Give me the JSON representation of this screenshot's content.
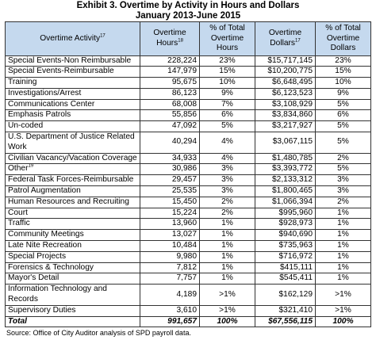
{
  "title": {
    "line1": "Exhibit 3. Overtime by Activity in Hours and Dollars",
    "line2": "January 2013-June 2015"
  },
  "headers": {
    "activity": "Overtime Activity",
    "activity_sup": "17",
    "hours": "Overtime Hours",
    "hours_sup": "18",
    "pct_hours": "% of Total Overtime Hours",
    "dollars": "Overtime Dollars",
    "dollars_sup": "17",
    "pct_dollars": "% of Total Overtime Dollars"
  },
  "rows": [
    {
      "activity": "Special Events-Non Reimbursable",
      "sup": "",
      "hours": "228,224",
      "pct_hours": "23%",
      "dollars": "$15,717,145",
      "pct_dollars": "23%"
    },
    {
      "activity": "Special Events-Reimbursable",
      "sup": "",
      "hours": "147,979",
      "pct_hours": "15%",
      "dollars": "$10,200,775",
      "pct_dollars": "15%"
    },
    {
      "activity": "Training",
      "sup": "",
      "hours": "95,675",
      "pct_hours": "10%",
      "dollars": "$6,648,495",
      "pct_dollars": "10%"
    },
    {
      "activity": "Investigations/Arrest",
      "sup": "",
      "hours": "86,123",
      "pct_hours": "9%",
      "dollars": "$6,123,523",
      "pct_dollars": "9%"
    },
    {
      "activity": "Communications Center",
      "sup": "",
      "hours": "68,008",
      "pct_hours": "7%",
      "dollars": "$3,108,929",
      "pct_dollars": "5%"
    },
    {
      "activity": "Emphasis Patrols",
      "sup": "",
      "hours": "55,856",
      "pct_hours": "6%",
      "dollars": "$3,834,860",
      "pct_dollars": "6%"
    },
    {
      "activity": "Un-coded",
      "sup": "",
      "hours": "47,092",
      "pct_hours": "5%",
      "dollars": "$3,217,927",
      "pct_dollars": "5%"
    },
    {
      "activity": "U.S. Department of Justice Related Work",
      "sup": "",
      "hours": "40,294",
      "pct_hours": "4%",
      "dollars": "$3,067,115",
      "pct_dollars": "5%"
    },
    {
      "activity": "Civilian Vacancy/Vacation Coverage",
      "sup": "",
      "hours": "34,933",
      "pct_hours": "4%",
      "dollars": "$1,480,785",
      "pct_dollars": "2%"
    },
    {
      "activity": "Other",
      "sup": "19",
      "hours": "30,986",
      "pct_hours": "3%",
      "dollars": "$3,393,772",
      "pct_dollars": "5%"
    },
    {
      "activity": "Federal Task Forces-Reimbursable",
      "sup": "",
      "hours": "29,457",
      "pct_hours": "3%",
      "dollars": "$2,133,312",
      "pct_dollars": "3%"
    },
    {
      "activity": "Patrol Augmentation",
      "sup": "",
      "hours": "25,535",
      "pct_hours": "3%",
      "dollars": "$1,800,465",
      "pct_dollars": "3%"
    },
    {
      "activity": "Human Resources and Recruiting",
      "sup": "",
      "hours": "15,450",
      "pct_hours": "2%",
      "dollars": "$1,066,394",
      "pct_dollars": "2%"
    },
    {
      "activity": "Court",
      "sup": "",
      "hours": "15,224",
      "pct_hours": "2%",
      "dollars": "$995,960",
      "pct_dollars": "1%"
    },
    {
      "activity": "Traffic",
      "sup": "",
      "hours": "13,960",
      "pct_hours": "1%",
      "dollars": "$928,973",
      "pct_dollars": "1%"
    },
    {
      "activity": "Community Meetings",
      "sup": "",
      "hours": "13,027",
      "pct_hours": "1%",
      "dollars": "$940,690",
      "pct_dollars": "1%"
    },
    {
      "activity": "Late Nite Recreation",
      "sup": "",
      "hours": "10,484",
      "pct_hours": "1%",
      "dollars": "$735,963",
      "pct_dollars": "1%"
    },
    {
      "activity": "Special Projects",
      "sup": "",
      "hours": "9,980",
      "pct_hours": "1%",
      "dollars": "$716,972",
      "pct_dollars": "1%"
    },
    {
      "activity": "Forensics & Technology",
      "sup": "",
      "hours": "7,812",
      "pct_hours": "1%",
      "dollars": "$415,111",
      "pct_dollars": "1%"
    },
    {
      "activity": "Mayor's Detail",
      "sup": "",
      "hours": "7,757",
      "pct_hours": "1%",
      "dollars": "$545,411",
      "pct_dollars": "1%"
    },
    {
      "activity": "Information Technology and Records",
      "sup": "",
      "hours": "4,189",
      "pct_hours": ">1%",
      "dollars": "$162,129",
      "pct_dollars": ">1%"
    },
    {
      "activity": "Supervisory Duties",
      "sup": "",
      "hours": "3,610",
      "pct_hours": ">1%",
      "dollars": "$321,410",
      "pct_dollars": ">1%"
    }
  ],
  "total": {
    "activity": "Total",
    "hours": "991,657",
    "pct_hours": "100%",
    "dollars": "$67,556,115",
    "pct_dollars": "100%"
  },
  "source": "Source: Office of City Auditor analysis of SPD payroll data.",
  "colors": {
    "header_bg": "#c5d9ee",
    "border": "#333333"
  }
}
